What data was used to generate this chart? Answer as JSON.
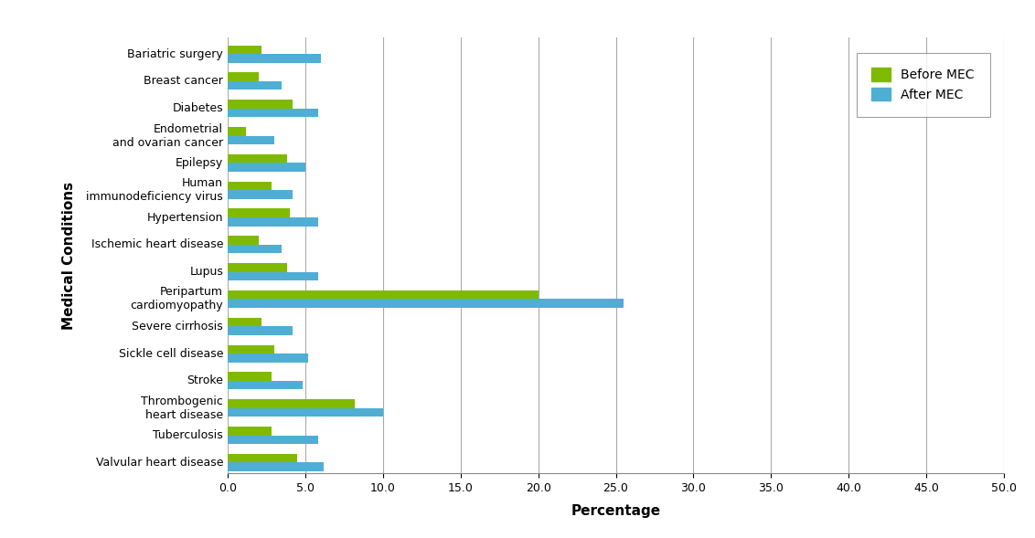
{
  "conditions": [
    "Bariatric surgery",
    "Breast cancer",
    "Diabetes",
    "Endometrial\nand ovarian cancer",
    "Epilepsy",
    "Human\nimmunodeficiency virus",
    "Hypertension",
    "Ischemic heart disease",
    "Lupus",
    "Peripartum\ncardiomyopathy",
    "Severe cirrhosis",
    "Sickle cell disease",
    "Stroke",
    "Thrombogenic\nheart disease",
    "Tuberculosis",
    "Valvular heart disease"
  ],
  "before_mec": [
    2.2,
    2.0,
    4.2,
    1.2,
    3.8,
    2.8,
    4.0,
    2.0,
    3.8,
    20.0,
    2.2,
    3.0,
    2.8,
    8.2,
    2.8,
    4.5
  ],
  "after_mec": [
    6.0,
    3.5,
    5.8,
    3.0,
    5.0,
    4.2,
    5.8,
    3.5,
    5.8,
    25.5,
    4.2,
    5.2,
    4.8,
    10.0,
    5.8,
    6.2
  ],
  "before_color": "#7fba00",
  "after_color": "#4faed4",
  "xlim": [
    0,
    50
  ],
  "xticks": [
    0.0,
    5.0,
    10.0,
    15.0,
    20.0,
    25.0,
    30.0,
    35.0,
    40.0,
    45.0,
    50.0
  ],
  "xlabel": "Percentage",
  "ylabel": "Medical Conditions",
  "legend_before": "Before MEC",
  "legend_after": "After MEC",
  "background_color": "#ffffff",
  "grid_color": "#aaaaaa",
  "bar_height": 0.32,
  "axis_fontsize": 11,
  "tick_fontsize": 9,
  "label_fontsize": 9,
  "legend_fontsize": 10
}
